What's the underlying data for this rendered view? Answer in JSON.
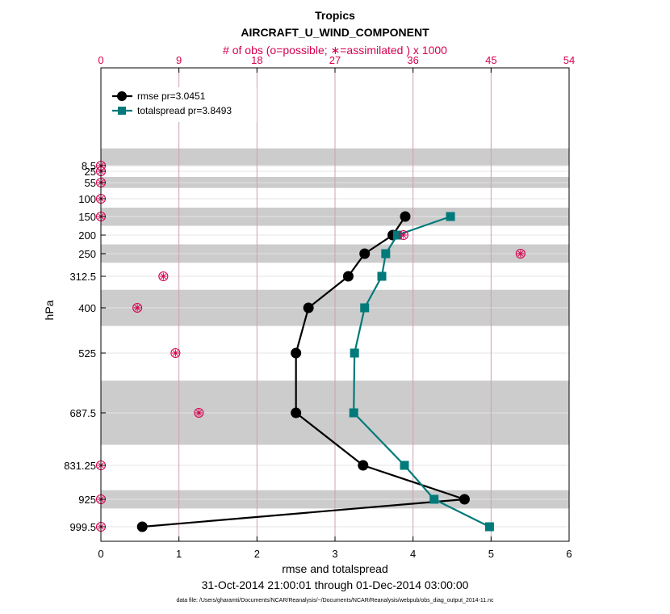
{
  "chart_data": {
    "type": "line",
    "title": "Tropics",
    "subtitle": "AIRCRAFT_U_WIND_COMPONENT",
    "top_axis_label": "# of obs (o=possible; ∗=assimilated ) x 1000",
    "xlabel": "rmse and totalspread",
    "ylabel": "hPa",
    "date_range": "31-Oct-2014 21:00:01 through 01-Dec-2014 03:00:00",
    "data_file": "data file: /Users/gharamti/Documents/NCAR/Reanalysis/~/Documents/NCAR/Reanalysis/webpub/obs_diag_output_2014-11.nc",
    "xlim": [
      0,
      6
    ],
    "x_ticks": [
      "0",
      "1",
      "2",
      "3",
      "4",
      "5",
      "6"
    ],
    "top_xlim": [
      0,
      54
    ],
    "top_ticks": [
      "0",
      "9",
      "18",
      "27",
      "36",
      "45",
      "54"
    ],
    "levels": [
      8.5,
      25,
      55,
      100,
      150,
      200,
      250,
      312.5,
      400,
      525,
      687.5,
      831.25,
      925,
      999.5
    ],
    "level_labels": [
      "8.5",
      "25",
      "55",
      "100",
      "150",
      "200",
      "250",
      "312.5",
      "400",
      "525",
      "687.5",
      "831.25",
      "925",
      "999.5"
    ],
    "shaded_bands": [
      [
        7,
        10
      ],
      [
        40,
        70
      ],
      [
        125,
        175
      ],
      [
        225,
        275
      ],
      [
        350,
        450
      ],
      [
        600,
        775
      ],
      [
        900,
        950
      ]
    ],
    "series": [
      {
        "name": "rmse",
        "legend": "rmse pr=3.0451",
        "color": "#000000",
        "marker": "circle",
        "points": [
          {
            "level": 150,
            "value": 3.9
          },
          {
            "level": 200,
            "value": 3.74
          },
          {
            "level": 250,
            "value": 3.38
          },
          {
            "level": 312.5,
            "value": 3.17
          },
          {
            "level": 400,
            "value": 2.66
          },
          {
            "level": 525,
            "value": 2.5
          },
          {
            "level": 687.5,
            "value": 2.5
          },
          {
            "level": 831.25,
            "value": 3.36
          },
          {
            "level": 925,
            "value": 4.66
          },
          {
            "level": 999.5,
            "value": 0.53
          }
        ]
      },
      {
        "name": "totalspread",
        "legend": "totalspread pr=3.8493",
        "color": "#007a7a",
        "marker": "square",
        "points": [
          {
            "level": 150,
            "value": 4.48
          },
          {
            "level": 200,
            "value": 3.8
          },
          {
            "level": 250,
            "value": 3.65
          },
          {
            "level": 312.5,
            "value": 3.6
          },
          {
            "level": 400,
            "value": 3.38
          },
          {
            "level": 525,
            "value": 3.25
          },
          {
            "level": 687.5,
            "value": 3.24
          },
          {
            "level": 831.25,
            "value": 3.89
          },
          {
            "level": 925,
            "value": 4.27
          },
          {
            "level": 999.5,
            "value": 4.98
          }
        ]
      }
    ],
    "obs_counts": [
      {
        "level": 8.5,
        "count": 0
      },
      {
        "level": 25,
        "count": 0
      },
      {
        "level": 55,
        "count": 0
      },
      {
        "level": 100,
        "count": 0
      },
      {
        "level": 150,
        "count": 0
      },
      {
        "level": 200,
        "count": 34.9
      },
      {
        "level": 250,
        "count": 48.4
      },
      {
        "level": 312.5,
        "count": 7.2
      },
      {
        "level": 400,
        "count": 4.2
      },
      {
        "level": 525,
        "count": 8.6
      },
      {
        "level": 687.5,
        "count": 11.3
      },
      {
        "level": 831.25,
        "count": 0
      },
      {
        "level": 925,
        "count": 0
      },
      {
        "level": 999.5,
        "count": 0
      }
    ],
    "colors": {
      "obs": "#d6004f",
      "band": "#cccccc",
      "grid_x": "#d0a0b0",
      "grid_y": "#e4e4e4"
    }
  }
}
